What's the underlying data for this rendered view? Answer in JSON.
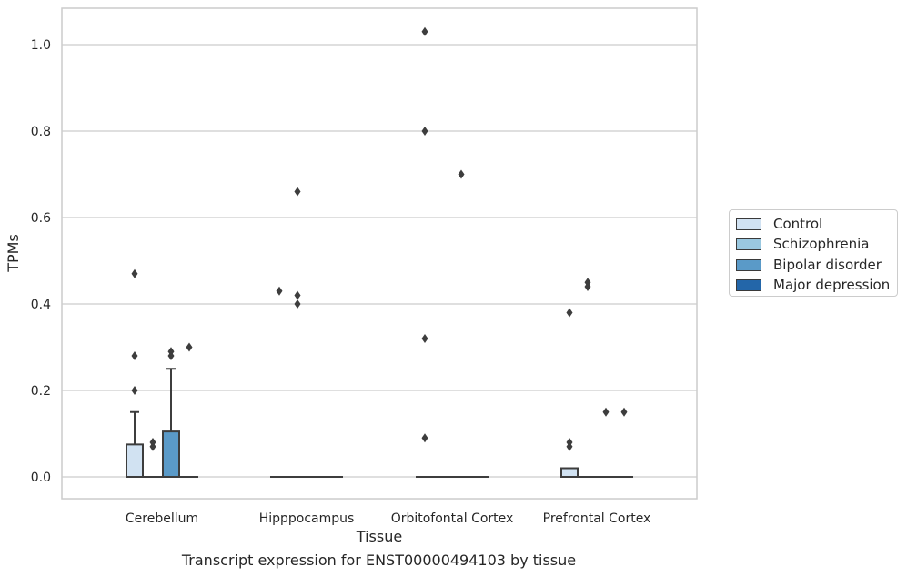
{
  "chart_data": {
    "type": "box",
    "title": "",
    "xlabel": "Tissue",
    "ylabel": "TPMs",
    "ylim": [
      -0.05,
      1.08
    ],
    "yticks": [
      "0.0",
      "0.2",
      "0.4",
      "0.6",
      "0.8",
      "1.0"
    ],
    "grid": "horizontal",
    "legend_position": "right",
    "categories": [
      "Cerebellum",
      "Hipppocampus",
      "Orbitofontal Cortex",
      "Prefrontal Cortex"
    ],
    "series": [
      {
        "name": "Control",
        "color": "#d1e2f2",
        "boxes": [
          {
            "q1": 0.0,
            "median": 0.0,
            "q3": 0.075,
            "whisker_low": 0.0,
            "whisker_high": 0.15,
            "outliers": [
              0.47,
              0.28,
              0.2
            ]
          },
          {
            "q1": 0.0,
            "median": 0.0,
            "q3": 0.0,
            "whisker_low": 0.0,
            "whisker_high": 0.0,
            "outliers": [
              0.43
            ]
          },
          {
            "q1": 0.0,
            "median": 0.0,
            "q3": 0.0,
            "whisker_low": 0.0,
            "whisker_high": 0.0,
            "outliers": [
              1.03,
              0.8,
              0.32,
              0.09
            ]
          },
          {
            "q1": 0.0,
            "median": 0.0,
            "q3": 0.02,
            "whisker_low": 0.0,
            "whisker_high": 0.02,
            "outliers": [
              0.38,
              0.08,
              0.07
            ]
          }
        ]
      },
      {
        "name": "Schizophrenia",
        "color": "#9ac8e0",
        "boxes": [
          {
            "q1": 0.0,
            "median": 0.0,
            "q3": 0.0,
            "whisker_low": 0.0,
            "whisker_high": 0.0,
            "outliers": [
              0.08,
              0.07
            ]
          },
          {
            "q1": 0.0,
            "median": 0.0,
            "q3": 0.0,
            "whisker_low": 0.0,
            "whisker_high": 0.0,
            "outliers": [
              0.66,
              0.42,
              0.4
            ]
          },
          {
            "q1": 0.0,
            "median": 0.0,
            "q3": 0.0,
            "whisker_low": 0.0,
            "whisker_high": 0.0,
            "outliers": []
          },
          {
            "q1": 0.0,
            "median": 0.0,
            "q3": 0.0,
            "whisker_low": 0.0,
            "whisker_high": 0.0,
            "outliers": [
              0.45,
              0.44
            ]
          }
        ]
      },
      {
        "name": "Bipolar disorder",
        "color": "#5a9ac8",
        "boxes": [
          {
            "q1": 0.0,
            "median": 0.0,
            "q3": 0.105,
            "whisker_low": 0.0,
            "whisker_high": 0.25,
            "outliers": [
              0.29,
              0.28
            ]
          },
          {
            "q1": 0.0,
            "median": 0.0,
            "q3": 0.0,
            "whisker_low": 0.0,
            "whisker_high": 0.0,
            "outliers": []
          },
          {
            "q1": 0.0,
            "median": 0.0,
            "q3": 0.0,
            "whisker_low": 0.0,
            "whisker_high": 0.0,
            "outliers": [
              0.7
            ]
          },
          {
            "q1": 0.0,
            "median": 0.0,
            "q3": 0.0,
            "whisker_low": 0.0,
            "whisker_high": 0.0,
            "outliers": [
              0.15
            ]
          }
        ]
      },
      {
        "name": "Major depression",
        "color": "#2366a9",
        "boxes": [
          {
            "q1": 0.0,
            "median": 0.0,
            "q3": 0.0,
            "whisker_low": 0.0,
            "whisker_high": 0.0,
            "outliers": [
              0.3
            ]
          },
          {
            "q1": 0.0,
            "median": 0.0,
            "q3": 0.0,
            "whisker_low": 0.0,
            "whisker_high": 0.0,
            "outliers": []
          },
          {
            "q1": 0.0,
            "median": 0.0,
            "q3": 0.0,
            "whisker_low": 0.0,
            "whisker_high": 0.0,
            "outliers": []
          },
          {
            "q1": 0.0,
            "median": 0.0,
            "q3": 0.0,
            "whisker_low": 0.0,
            "whisker_high": 0.0,
            "outliers": [
              0.15
            ]
          }
        ]
      }
    ]
  },
  "caption": "Transcript expression for ENST00000494103 by tissue"
}
